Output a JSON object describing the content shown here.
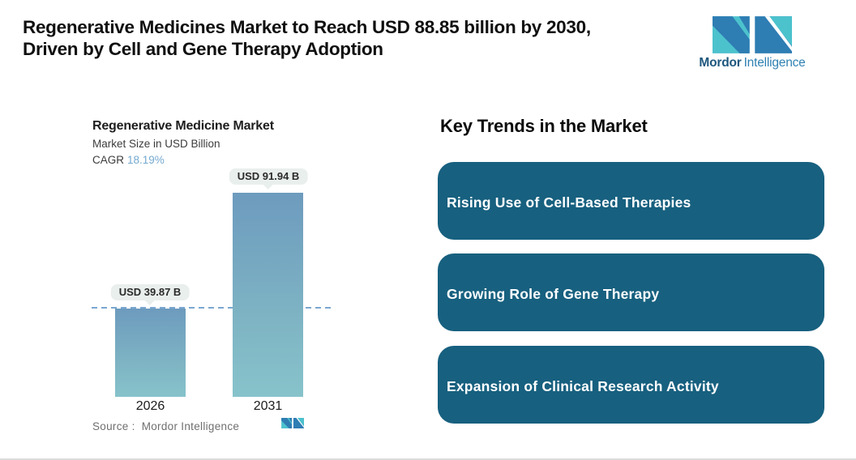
{
  "header": {
    "title_line1": "Regenerative Medicines Market to Reach USD 88.85 billion by 2030,",
    "title_line2": "Driven by Cell and Gene Therapy Adoption"
  },
  "brand": {
    "wordmark_bold": "Mordor",
    "wordmark_regular": "Intelligence"
  },
  "chart": {
    "title": "Regenerative Medicine Market",
    "subtitle": "Market Size in USD Billion",
    "cagr_label": "CAGR",
    "cagr_value": "18.19%",
    "source_label": "Source :",
    "source_value": "Mordor Intelligence"
  },
  "chart_data": {
    "type": "bar",
    "title": "Regenerative Medicine Market",
    "ylabel": "Market Size in USD Billion",
    "unit": "USD Billion",
    "categories": [
      "2026",
      "2031"
    ],
    "values": [
      39.87,
      91.94
    ],
    "value_labels": [
      "USD 39.87 B",
      "USD 91.94 B"
    ],
    "cagr_percent": 18.19,
    "reference_value": 39.87,
    "reference_style": "horizontal dashed line at 2026 bar top",
    "grid": false,
    "legend": "none"
  },
  "trends": {
    "heading": "Key Trends in the Market",
    "items": [
      {
        "label": "Rising Use of Cell-Based Therapies"
      },
      {
        "label": "Growing Role of Gene Therapy"
      },
      {
        "label": "Expansion of Clinical Research Activity"
      }
    ]
  },
  "colors": {
    "trend_card": "#17607f",
    "bar_gradient_top": "#6d9bbe",
    "bar_gradient_bottom": "#87c3cb",
    "dash_line": "#7aa7d1",
    "bubble_bg": "#e9efed",
    "cagr_value": "#74a9cf",
    "logo_teal": "#4cc2cd",
    "logo_blue": "#2e7db3",
    "wordmark_dark": "#1d567c",
    "wordmark_light": "#2f81b2",
    "source_text": "#6f6f6f"
  }
}
